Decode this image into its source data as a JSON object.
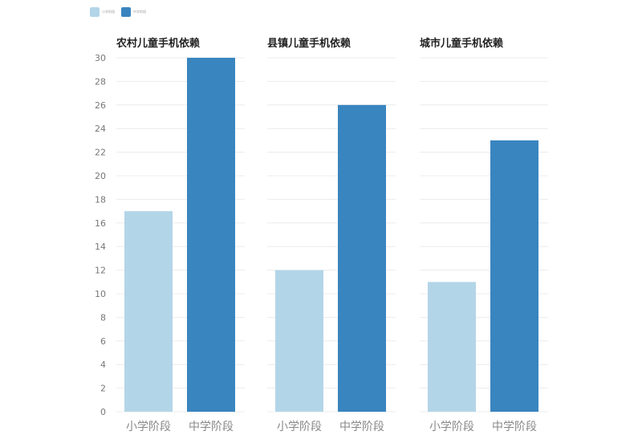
{
  "legend": [
    {
      "label": "小学阶段",
      "color": "#b3d5e8"
    },
    {
      "label": "中学阶段",
      "color": "#3985bf"
    }
  ],
  "chart_data": {
    "type": "bar",
    "ylim": [
      0,
      30
    ],
    "yticks": [
      0,
      2,
      4,
      6,
      8,
      10,
      12,
      14,
      16,
      18,
      20,
      22,
      24,
      26,
      28,
      30
    ],
    "categories": [
      "小学阶段",
      "中学阶段"
    ],
    "grid": true,
    "legend_position": "top-left",
    "colors": [
      "#b3d5e8",
      "#3985bf"
    ],
    "panels": [
      {
        "title": "农村儿童手机依赖",
        "values": [
          17,
          30
        ]
      },
      {
        "title": "县镇儿童手机依赖",
        "values": [
          12,
          26
        ]
      },
      {
        "title": "城市儿童手机依赖",
        "values": [
          11,
          23
        ]
      }
    ]
  }
}
